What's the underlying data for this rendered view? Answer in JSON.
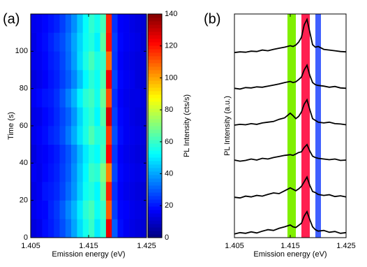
{
  "chart_data": [
    {
      "type": "heatmap",
      "label": "(a)",
      "xlabel": "Emission energy (eV)",
      "ylabel": "Time (s)",
      "colorbar_label": "PL Intensity (cts/s)",
      "colormap": "jet",
      "x": [
        1.4055,
        1.4065,
        1.4075,
        1.4085,
        1.4095,
        1.4105,
        1.4115,
        1.4125,
        1.4135,
        1.4145,
        1.4155,
        1.4165,
        1.4175,
        1.4185,
        1.4195,
        1.4205,
        1.4215,
        1.4225,
        1.4235,
        1.4245
      ],
      "y": [
        5,
        15,
        25,
        35,
        45,
        55,
        65,
        75,
        85,
        95,
        105,
        115
      ],
      "z": [
        [
          13,
          15,
          19,
          21,
          24,
          28,
          33,
          40,
          48,
          55,
          60,
          50,
          58,
          125,
          30,
          19,
          16,
          14,
          13,
          12
        ],
        [
          15,
          17,
          18,
          22,
          25,
          30,
          36,
          42,
          50,
          58,
          62,
          54,
          60,
          110,
          26,
          18,
          17,
          15,
          14,
          13
        ],
        [
          14,
          16,
          20,
          21,
          23,
          27,
          32,
          38,
          46,
          54,
          57,
          52,
          66,
          118,
          24,
          17,
          15,
          14,
          13,
          12
        ],
        [
          16,
          15,
          18,
          20,
          22,
          26,
          30,
          37,
          45,
          52,
          60,
          58,
          70,
          105,
          27,
          18,
          16,
          15,
          14,
          14
        ],
        [
          13,
          16,
          17,
          19,
          21,
          25,
          29,
          35,
          43,
          50,
          56,
          53,
          62,
          122,
          25,
          17,
          15,
          14,
          13,
          12
        ],
        [
          15,
          17,
          19,
          22,
          24,
          28,
          34,
          41,
          49,
          56,
          63,
          57,
          60,
          115,
          28,
          19,
          16,
          15,
          14,
          13
        ],
        [
          14,
          15,
          18,
          20,
          23,
          27,
          31,
          38,
          47,
          55,
          59,
          52,
          64,
          128,
          26,
          18,
          16,
          14,
          13,
          12
        ],
        [
          16,
          18,
          20,
          21,
          24,
          29,
          35,
          42,
          51,
          58,
          61,
          55,
          67,
          112,
          24,
          17,
          15,
          14,
          14,
          13
        ],
        [
          13,
          15,
          17,
          20,
          22,
          26,
          30,
          36,
          44,
          52,
          58,
          54,
          63,
          124,
          27,
          18,
          16,
          15,
          13,
          12
        ],
        [
          15,
          16,
          18,
          21,
          23,
          27,
          32,
          39,
          48,
          56,
          62,
          56,
          60,
          108,
          25,
          17,
          15,
          14,
          13,
          13
        ],
        [
          14,
          17,
          19,
          22,
          25,
          28,
          33,
          40,
          47,
          54,
          57,
          51,
          65,
          120,
          26,
          18,
          16,
          15,
          14,
          12
        ],
        [
          15,
          16,
          18,
          20,
          22,
          26,
          31,
          37,
          45,
          53,
          59,
          55,
          62,
          118,
          24,
          17,
          16,
          14,
          13,
          12
        ]
      ],
      "xlim": [
        1.405,
        1.425
      ],
      "ylim": [
        0,
        120
      ],
      "xticks": [
        1.405,
        1.415,
        1.425
      ],
      "yticks": [
        0,
        20,
        40,
        60,
        80,
        100
      ],
      "clim": [
        0,
        140
      ],
      "cticks": [
        0,
        20,
        40,
        60,
        80,
        100,
        120,
        140
      ]
    },
    {
      "type": "line",
      "label": "(b)",
      "xlabel": "Emission energy (eV)",
      "ylabel": "PL Intensity (a.u.)",
      "x": [
        1.405,
        1.406,
        1.407,
        1.408,
        1.409,
        1.41,
        1.411,
        1.412,
        1.413,
        1.414,
        1.415,
        1.4155,
        1.416,
        1.4165,
        1.417,
        1.4175,
        1.418,
        1.4185,
        1.419,
        1.4195,
        1.42,
        1.421,
        1.422,
        1.423,
        1.424,
        1.425
      ],
      "bands": [
        {
          "xlim": [
            1.4145,
            1.416
          ],
          "color": "#80f000"
        },
        {
          "xlim": [
            1.417,
            1.4185
          ],
          "color": "#ff2050"
        },
        {
          "xlim": [
            1.4195,
            1.4205
          ],
          "color": "#4060ff"
        }
      ],
      "series": [
        {
          "color": "#000000",
          "values": [
            0.1,
            0.14,
            0.12,
            0.16,
            0.13,
            0.18,
            0.22,
            0.2,
            0.26,
            0.3,
            0.35,
            0.3,
            0.28,
            0.34,
            0.4,
            0.6,
            0.72,
            0.5,
            0.3,
            0.22,
            0.18,
            0.2,
            0.15,
            0.17,
            0.12,
            0.14
          ]
        },
        {
          "color": "#000000",
          "values": [
            0.12,
            0.1,
            0.15,
            0.13,
            0.17,
            0.15,
            0.2,
            0.24,
            0.22,
            0.3,
            0.38,
            0.34,
            0.3,
            0.35,
            0.42,
            0.55,
            0.68,
            0.45,
            0.28,
            0.25,
            0.2,
            0.17,
            0.19,
            0.14,
            0.16,
            0.13
          ]
        },
        {
          "color": "#000000",
          "values": [
            0.15,
            0.12,
            0.14,
            0.18,
            0.15,
            0.2,
            0.18,
            0.22,
            0.25,
            0.28,
            0.3,
            0.28,
            0.32,
            0.36,
            0.38,
            0.5,
            0.58,
            0.4,
            0.26,
            0.22,
            0.2,
            0.18,
            0.16,
            0.18,
            0.14,
            0.15
          ]
        },
        {
          "color": "#000000",
          "values": [
            0.12,
            0.14,
            0.13,
            0.16,
            0.14,
            0.18,
            0.2,
            0.22,
            0.28,
            0.32,
            0.45,
            0.38,
            0.3,
            0.36,
            0.48,
            0.7,
            0.82,
            0.55,
            0.3,
            0.25,
            0.2,
            0.18,
            0.2,
            0.16,
            0.15,
            0.13
          ]
        },
        {
          "color": "#000000",
          "values": [
            0.14,
            0.12,
            0.16,
            0.15,
            0.18,
            0.17,
            0.2,
            0.23,
            0.26,
            0.3,
            0.33,
            0.3,
            0.32,
            0.38,
            0.45,
            0.65,
            0.78,
            0.5,
            0.3,
            0.24,
            0.22,
            0.2,
            0.17,
            0.19,
            0.15,
            0.14
          ]
        },
        {
          "color": "#000000",
          "values": [
            0.13,
            0.15,
            0.14,
            0.17,
            0.16,
            0.2,
            0.18,
            0.22,
            0.25,
            0.28,
            0.32,
            0.3,
            0.34,
            0.42,
            0.55,
            0.9,
            1.05,
            0.7,
            0.35,
            0.28,
            0.3,
            0.22,
            0.2,
            0.18,
            0.16,
            0.15
          ]
        }
      ],
      "xlim": [
        1.405,
        1.425
      ],
      "ylim": [
        0,
        6.2
      ],
      "xticks": [
        1.405,
        1.415,
        1.425
      ]
    }
  ]
}
